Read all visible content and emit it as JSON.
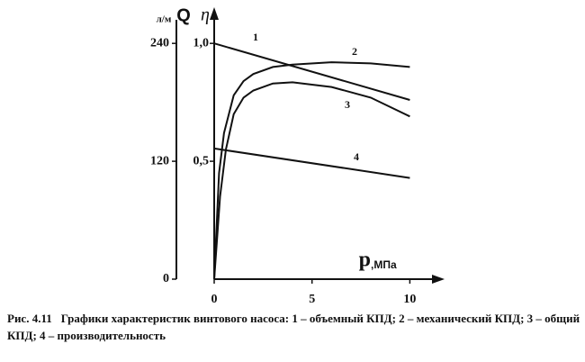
{
  "chart_data": {
    "type": "line",
    "y_label": "η",
    "y2_label": "Q",
    "y2_unit": "л/м",
    "x_label": "p",
    "x_unit": ",МПа",
    "xlim": [
      0,
      11.5
    ],
    "xticks": [
      0,
      5,
      10
    ],
    "ylim": [
      0,
      1.1
    ],
    "yticks": [
      {
        "value": 0.5,
        "label": "0,5"
      },
      {
        "value": 1.0,
        "label": "1,0"
      }
    ],
    "y2lim": [
      0,
      264
    ],
    "y2ticks": [
      0,
      120,
      240
    ],
    "color": "#111111",
    "series": [
      {
        "name": "1",
        "x": [
          0,
          10
        ],
        "values": [
          1.0,
          0.76
        ]
      },
      {
        "name": "2",
        "x": [
          0,
          0.25,
          0.5,
          1,
          1.5,
          2,
          3,
          4,
          6,
          8,
          10
        ],
        "values": [
          0,
          0.45,
          0.62,
          0.78,
          0.84,
          0.87,
          0.9,
          0.91,
          0.92,
          0.915,
          0.9
        ]
      },
      {
        "name": "3",
        "x": [
          0,
          0.3,
          0.6,
          1,
          1.5,
          2,
          3,
          4,
          6,
          8,
          10
        ],
        "values": [
          0,
          0.35,
          0.55,
          0.7,
          0.77,
          0.8,
          0.83,
          0.835,
          0.815,
          0.77,
          0.69
        ]
      },
      {
        "name": "4",
        "axis": "y2",
        "x": [
          0,
          10
        ],
        "values": [
          133,
          103
        ]
      }
    ],
    "caption_prefix": "Рис. 4.11",
    "caption": "Графики характеристик винтового насоса: 1 – объемный КПД; 2 – механический КПД; 3 – общий КПД; 4 – производительность"
  }
}
